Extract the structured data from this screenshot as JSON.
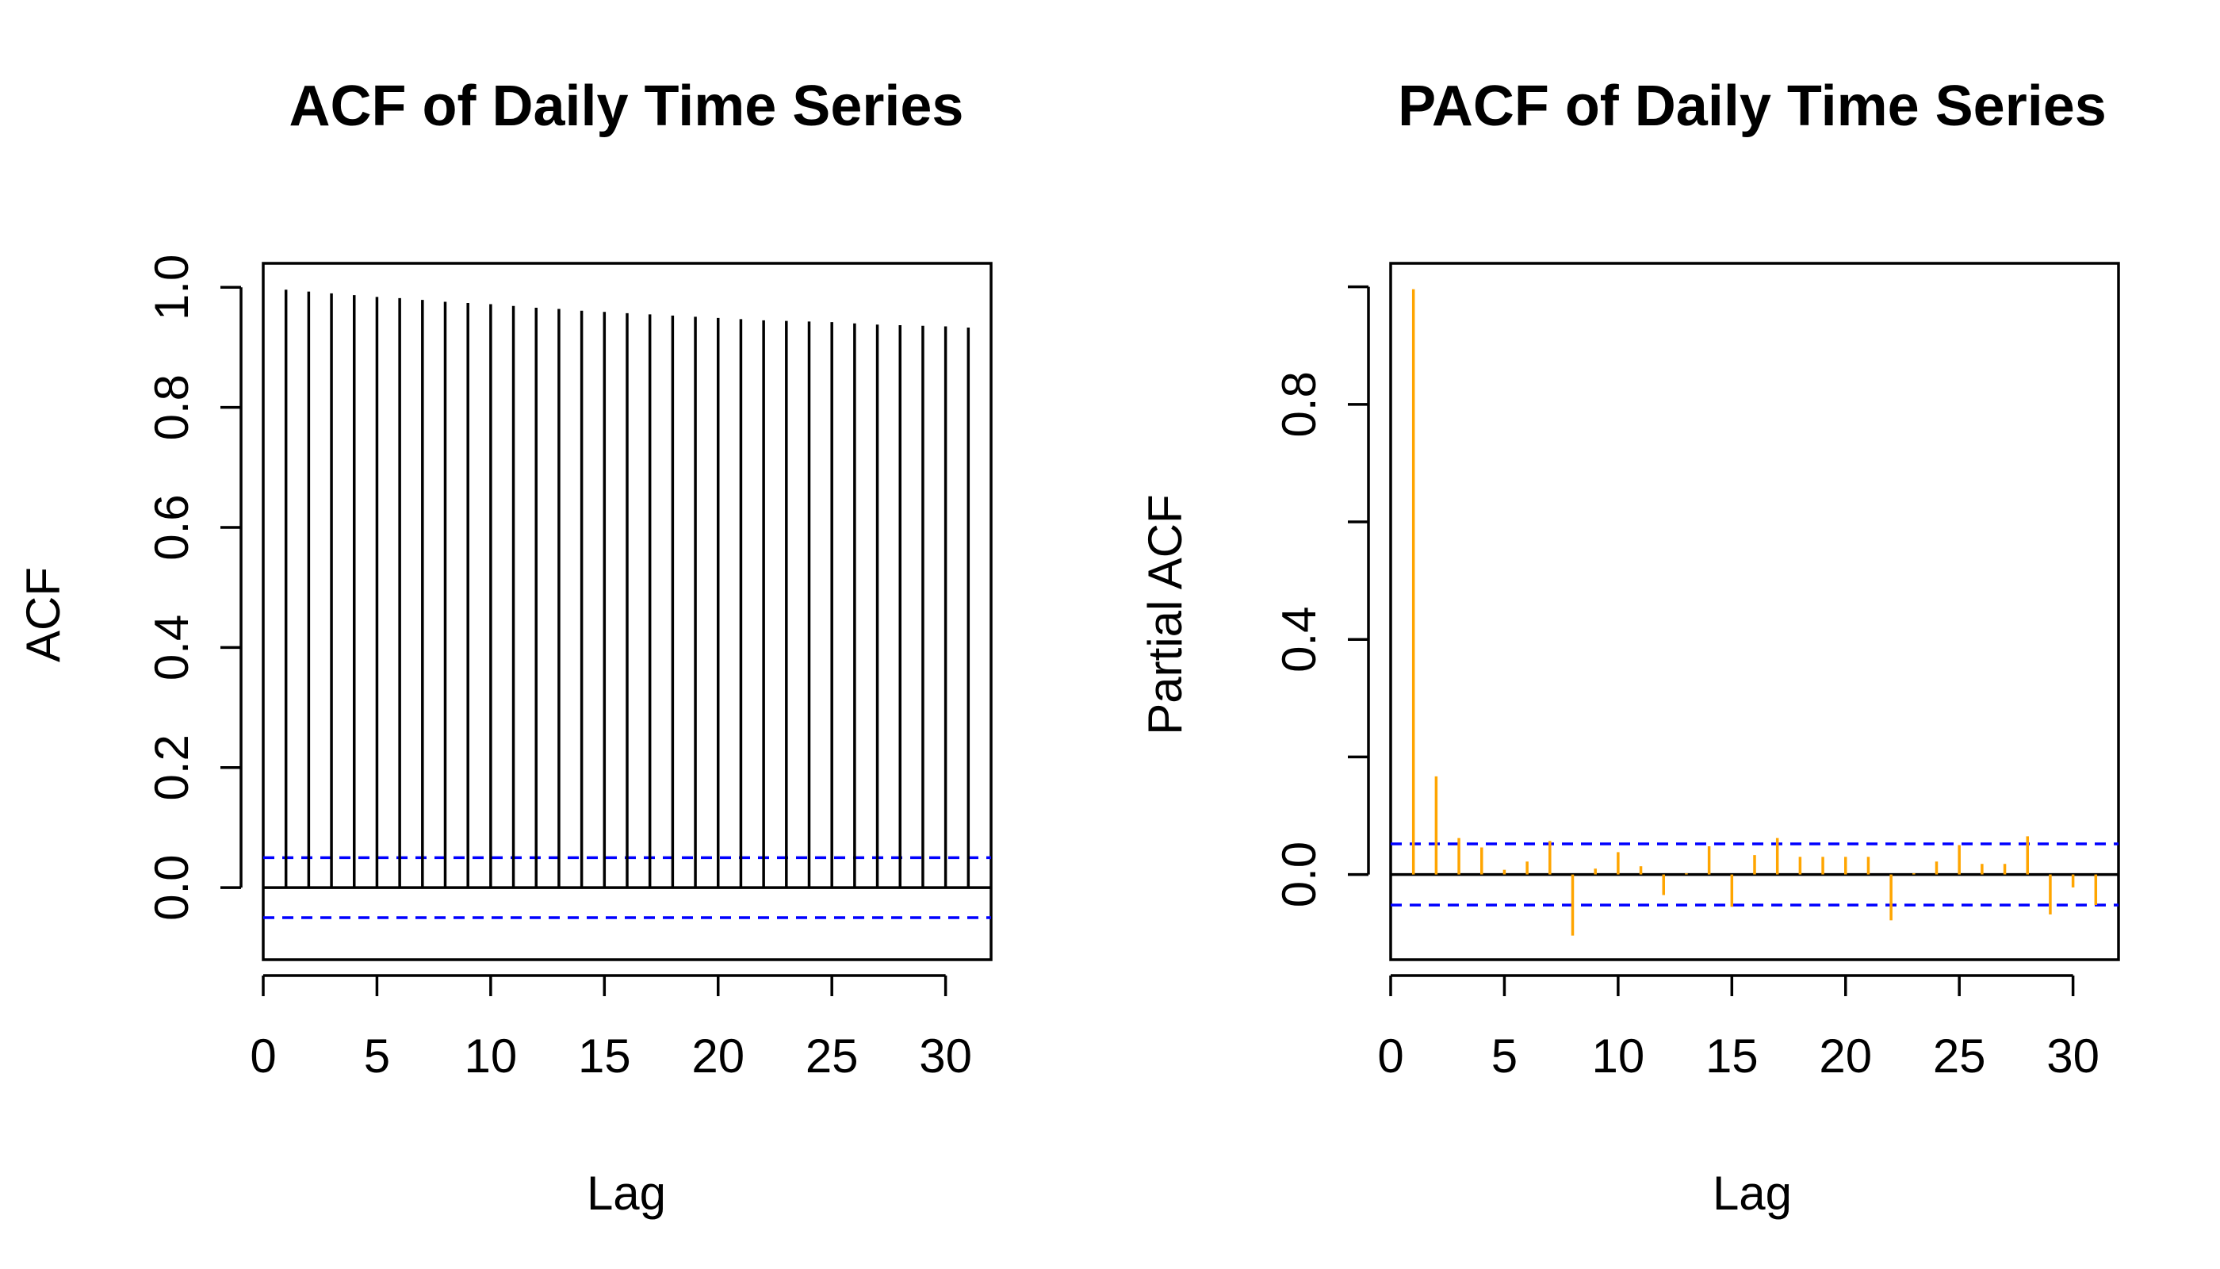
{
  "chart_data": [
    {
      "type": "bar",
      "title": "ACF of Daily Time Series",
      "xlabel": "Lag",
      "ylabel": "ACF",
      "xlim": [
        0,
        32
      ],
      "ylim": [
        -0.12,
        1.04
      ],
      "xticks": [
        0,
        5,
        10,
        15,
        20,
        25,
        30
      ],
      "xtick_labels": [
        "0",
        "5",
        "10",
        "15",
        "20",
        "25",
        "30"
      ],
      "yticks": [
        0.0,
        0.2,
        0.4,
        0.6,
        0.8,
        1.0
      ],
      "ytick_labels": [
        "0.0",
        "0.2",
        "0.4",
        "0.6",
        "0.8",
        "1.0"
      ],
      "bar_color": "#000000",
      "confidence_bound": 0.05,
      "confidence_color": "#0000ff",
      "x": [
        1,
        2,
        3,
        4,
        5,
        6,
        7,
        8,
        9,
        10,
        11,
        12,
        13,
        14,
        15,
        16,
        17,
        18,
        19,
        20,
        21,
        22,
        23,
        24,
        25,
        26,
        27,
        28,
        29,
        30,
        31
      ],
      "values": [
        0.996,
        0.993,
        0.99,
        0.987,
        0.984,
        0.982,
        0.979,
        0.976,
        0.974,
        0.972,
        0.969,
        0.966,
        0.964,
        0.961,
        0.959,
        0.957,
        0.955,
        0.953,
        0.951,
        0.949,
        0.947,
        0.945,
        0.944,
        0.943,
        0.942,
        0.94,
        0.938,
        0.937,
        0.936,
        0.935,
        0.933
      ]
    },
    {
      "type": "bar",
      "title": "PACF of Daily Time Series",
      "xlabel": "Lag",
      "ylabel": "Partial ACF",
      "xlim": [
        0,
        32
      ],
      "ylim": [
        -0.145,
        1.04
      ],
      "xticks": [
        0,
        5,
        10,
        15,
        20,
        25,
        30
      ],
      "xtick_labels": [
        "0",
        "5",
        "10",
        "15",
        "20",
        "25",
        "30"
      ],
      "yticks": [
        0.0,
        0.2,
        0.4,
        0.6,
        0.8,
        1.0
      ],
      "ytick_labels": [
        "0.0",
        "",
        "0.4",
        "",
        "0.8",
        ""
      ],
      "bar_color": "#ffa500",
      "confidence_bound": 0.052,
      "confidence_color": "#0000ff",
      "x": [
        1,
        2,
        3,
        4,
        5,
        6,
        7,
        8,
        9,
        10,
        11,
        12,
        13,
        14,
        15,
        16,
        17,
        18,
        19,
        20,
        21,
        22,
        23,
        24,
        25,
        26,
        27,
        28,
        29,
        30,
        31
      ],
      "values": [
        0.996,
        0.167,
        0.062,
        0.046,
        0.008,
        0.022,
        0.057,
        -0.104,
        0.01,
        0.038,
        0.014,
        -0.035,
        0.002,
        0.048,
        -0.055,
        0.033,
        0.062,
        0.03,
        0.03,
        0.03,
        0.03,
        -0.078,
        0.002,
        0.022,
        0.05,
        0.018,
        0.018,
        0.065,
        -0.068,
        -0.022,
        -0.052
      ]
    }
  ]
}
